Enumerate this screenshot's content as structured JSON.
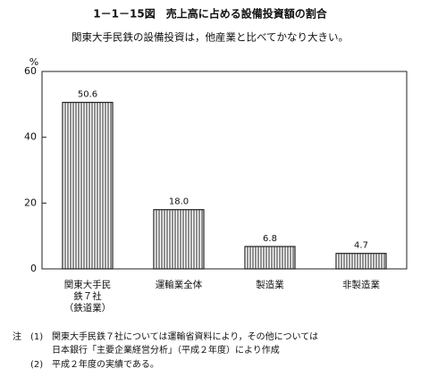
{
  "chart_data": {
    "type": "bar",
    "title": "1－1－15図　売上高に占める設備投資額の割合",
    "subtitle": "関東大手民鉄の設備投資は，他産業と比べてかなり大きい。",
    "y_unit": "%",
    "categories": [
      "関東大手民\n鉄７社\n（鉄道業）",
      "運輸業全体",
      "製造業",
      "非製造業"
    ],
    "values": [
      50.6,
      18.0,
      6.8,
      4.7
    ],
    "value_labels": [
      "50.6",
      "18.0",
      "6.8",
      "4.7"
    ],
    "color": "#222222",
    "ylim": [
      0,
      60
    ],
    "yticks": [
      0,
      20,
      40,
      60
    ],
    "grid": false,
    "note_label": "注",
    "notes": [
      {
        "number": "(1)",
        "text": "関東大手民鉄７社については運輸省資料により，その他については\n日本銀行「主要企業経営分析」（平成２年度）により作成"
      },
      {
        "number": "(2)",
        "text": "平成２年度の実績である。"
      }
    ]
  }
}
